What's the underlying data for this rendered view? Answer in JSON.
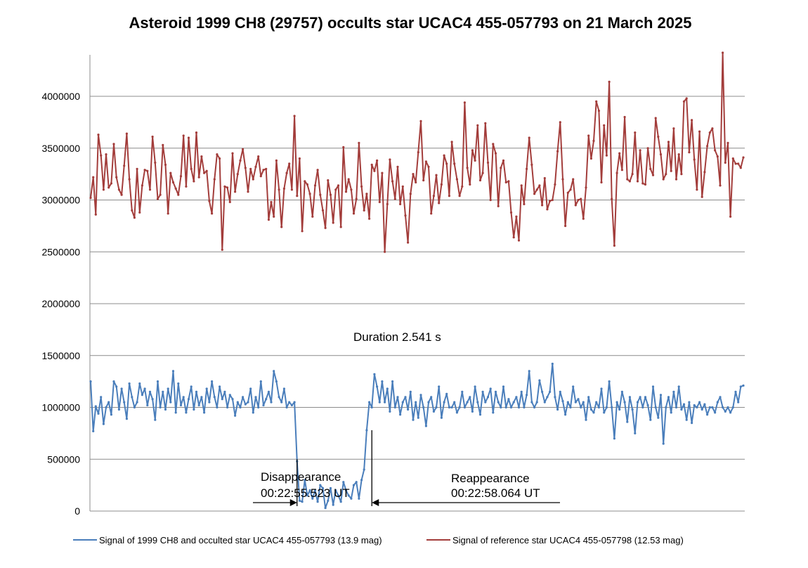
{
  "chart_data": {
    "type": "line",
    "title": "Asteroid 1999 CH8 (29757) occults star UCAC4 455-057793 on 21 March 2025",
    "xlabel": "",
    "ylabel": "",
    "ylim": [
      0,
      4400000
    ],
    "yticks": [
      0,
      500000,
      1000000,
      1500000,
      2000000,
      2500000,
      3000000,
      3500000,
      4000000
    ],
    "ytick_labels": [
      "0",
      "500000",
      "1000000",
      "1500000",
      "2000000",
      "2500000",
      "3000000",
      "3500000",
      "4000000"
    ],
    "grid": true,
    "legend_position": "bottom",
    "series": [
      {
        "name": "Signal of 1999 CH8 and occulted star UCAC4 455-057793 (13.9 mag)",
        "color": "#4a7ebb",
        "values": [
          1250000,
          770000,
          1010000,
          940000,
          1100000,
          840000,
          1000000,
          1050000,
          930000,
          1250000,
          1200000,
          980000,
          1180000,
          1050000,
          890000,
          1230000,
          1100000,
          1000000,
          1050000,
          1230000,
          1120000,
          1180000,
          1020000,
          1150000,
          1080000,
          880000,
          1250000,
          1000000,
          1150000,
          980000,
          1180000,
          1050000,
          1350000,
          950000,
          1230000,
          1020000,
          1100000,
          950000,
          1080000,
          1200000,
          980000,
          1150000,
          1020000,
          1100000,
          950000,
          1180000,
          1050000,
          1250000,
          1100000,
          1000000,
          1200000,
          1080000,
          1150000,
          1000000,
          1120000,
          1080000,
          920000,
          1050000,
          1000000,
          1100000,
          1030000,
          1050000,
          1180000,
          950000,
          1100000,
          1000000,
          1250000,
          1020000,
          1080000,
          1150000,
          1050000,
          1350000,
          1250000,
          1100000,
          1050000,
          1180000,
          1000000,
          1050000,
          1020000,
          1050000,
          480000,
          100000,
          90000,
          300000,
          150000,
          200000,
          120000,
          200000,
          90000,
          250000,
          220000,
          30000,
          100000,
          220000,
          60000,
          200000,
          150000,
          90000,
          280000,
          200000,
          150000,
          120000,
          250000,
          280000,
          120000,
          300000,
          400000,
          780000,
          1050000,
          1000000,
          1320000,
          1200000,
          1050000,
          1250000,
          1050000,
          1180000,
          960000,
          1250000,
          1000000,
          1100000,
          930000,
          1050000,
          1100000,
          980000,
          1150000,
          880000,
          1050000,
          900000,
          1120000,
          1000000,
          820000,
          1050000,
          1100000,
          960000,
          1000000,
          1200000,
          900000,
          1050000,
          1130000,
          1000000,
          1000000,
          1050000,
          950000,
          1000000,
          1150000,
          1000000,
          1050000,
          1100000,
          960000,
          1200000,
          1050000,
          930000,
          1150000,
          1050000,
          1100000,
          1180000,
          950000,
          1150000,
          1050000,
          1000000,
          1200000,
          1000000,
          1080000,
          1000000,
          1050000,
          1100000,
          1000000,
          1150000,
          1000000,
          1120000,
          1350000,
          1050000,
          1000000,
          1050000,
          1260000,
          1150000,
          1050000,
          1100000,
          1150000,
          1420000,
          1100000,
          980000,
          1150000,
          1060000,
          930000,
          1050000,
          1000000,
          1200000,
          1050000,
          1080000,
          1000000,
          1050000,
          880000,
          1100000,
          980000,
          950000,
          1050000,
          1000000,
          1180000,
          950000,
          1000000,
          1250000,
          1000000,
          700000,
          1050000,
          980000,
          1150000,
          1050000,
          860000,
          1100000,
          980000,
          750000,
          1050000,
          1100000,
          1000000,
          1100000,
          1020000,
          880000,
          1200000,
          1000000,
          900000,
          1120000,
          650000,
          1000000,
          1100000,
          950000,
          1150000,
          1000000,
          1200000,
          980000,
          1030000,
          880000,
          1050000,
          850000,
          1020000,
          1000000,
          1050000,
          980000,
          1030000,
          930000,
          1000000,
          1000000,
          950000,
          1050000,
          1100000,
          1000000,
          960000,
          1000000,
          950000,
          1000000,
          1150000,
          1050000,
          1200000,
          1210000
        ]
      },
      {
        "name": "Signal of reference star UCAC4 455-057798 (12.53 mag)",
        "color": "#a33d3b",
        "values": [
          3020000,
          3220000,
          2860000,
          3630000,
          3430000,
          3100000,
          3440000,
          3120000,
          3160000,
          3540000,
          3220000,
          3100000,
          3050000,
          3330000,
          3640000,
          3200000,
          2900000,
          2830000,
          3300000,
          2880000,
          3140000,
          3290000,
          3280000,
          3100000,
          3610000,
          3360000,
          3010000,
          3050000,
          3530000,
          3340000,
          2870000,
          3260000,
          3170000,
          3110000,
          3050000,
          3230000,
          3620000,
          3130000,
          3600000,
          3300000,
          3180000,
          3650000,
          3220000,
          3420000,
          3260000,
          3280000,
          2990000,
          2870000,
          3200000,
          3440000,
          3400000,
          2520000,
          3130000,
          3120000,
          2980000,
          3450000,
          3080000,
          3250000,
          3380000,
          3490000,
          3310000,
          3080000,
          3300000,
          3200000,
          3320000,
          3420000,
          3230000,
          3290000,
          3300000,
          2810000,
          2980000,
          2840000,
          3380000,
          3100000,
          2740000,
          3110000,
          3260000,
          3350000,
          3100000,
          3810000,
          3040000,
          3400000,
          2700000,
          3180000,
          3150000,
          3060000,
          2840000,
          3140000,
          3290000,
          3050000,
          2900000,
          2730000,
          3190000,
          3050000,
          2780000,
          3100000,
          3140000,
          2740000,
          3510000,
          3080000,
          3200000,
          3100000,
          2870000,
          3010000,
          3550000,
          3130000,
          2900000,
          3060000,
          2820000,
          3340000,
          3280000,
          3380000,
          2980000,
          3260000,
          2500000,
          2960000,
          3390000,
          3180000,
          3010000,
          3320000,
          2960000,
          3130000,
          2850000,
          2590000,
          3060000,
          3250000,
          3170000,
          3460000,
          3760000,
          3190000,
          3370000,
          3320000,
          2870000,
          3040000,
          3240000,
          2970000,
          3150000,
          3430000,
          3350000,
          3040000,
          3560000,
          3350000,
          3200000,
          3040000,
          3130000,
          3940000,
          3310000,
          3150000,
          3480000,
          3380000,
          3720000,
          3190000,
          3260000,
          3740000,
          3360000,
          3000000,
          3540000,
          3450000,
          2940000,
          3310000,
          3380000,
          3170000,
          3180000,
          2880000,
          2640000,
          2840000,
          2610000,
          3140000,
          2960000,
          3300000,
          3600000,
          3340000,
          3060000,
          3100000,
          3140000,
          2950000,
          3210000,
          2910000,
          2990000,
          3000000,
          3150000,
          3470000,
          3750000,
          3200000,
          2750000,
          3070000,
          3100000,
          3200000,
          2950000,
          3000000,
          3010000,
          2820000,
          3120000,
          3620000,
          3400000,
          3570000,
          3950000,
          3860000,
          3170000,
          3720000,
          3430000,
          4140000,
          3010000,
          2560000,
          3260000,
          3450000,
          3290000,
          3800000,
          3200000,
          3180000,
          3250000,
          3650000,
          3180000,
          3480000,
          3160000,
          3150000,
          3500000,
          3300000,
          3240000,
          3790000,
          3610000,
          3440000,
          3200000,
          3250000,
          3560000,
          3280000,
          3690000,
          3200000,
          3440000,
          3250000,
          3950000,
          3980000,
          3460000,
          3770000,
          3390000,
          3100000,
          3660000,
          3030000,
          3270000,
          3520000,
          3650000,
          3690000,
          3480000,
          3420000,
          3140000,
          4420000,
          3360000,
          3550000,
          2840000,
          3400000,
          3350000,
          3350000,
          3310000,
          3410000
        ]
      }
    ],
    "annotations": {
      "duration": "Duration 2.541 s",
      "disappearance_label": "Disappearance",
      "disappearance_time": "00:22:55.523 UT",
      "reappearance_label": "Reappearance",
      "reappearance_time": "00:22:58.064 UT",
      "disappearance_index": 80,
      "reappearance_index": 109
    }
  }
}
